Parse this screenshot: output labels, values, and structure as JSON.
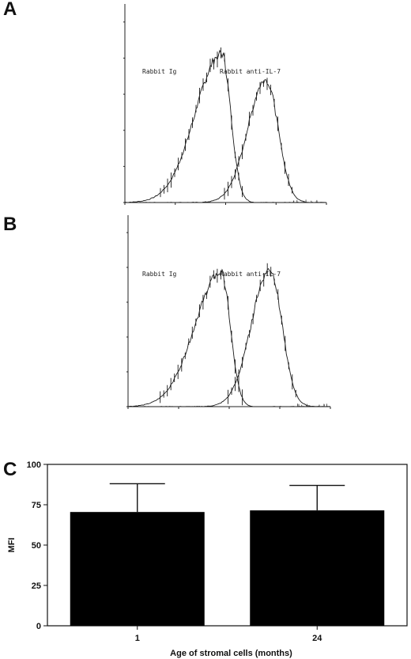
{
  "panels": {
    "A": {
      "letter": "A",
      "label_left": "Rabbit Ig",
      "label_right": "Rabbit anti-IL-7"
    },
    "B": {
      "letter": "B",
      "label_left": "Rabbit Ig",
      "label_right": "Rabbit anti-IL-7"
    },
    "C": {
      "letter": "C"
    }
  },
  "chart_data": [
    {
      "panel": "A",
      "type": "line",
      "title": "",
      "xlabel": "",
      "ylabel": "",
      "xscale": "log",
      "series": [
        {
          "name": "Rabbit Ig",
          "peak_center": 0.48,
          "peak_height": 0.75
        },
        {
          "name": "Rabbit anti-IL-7",
          "peak_center": 0.7,
          "peak_height": 0.62
        }
      ]
    },
    {
      "panel": "B",
      "type": "line",
      "title": "",
      "xlabel": "",
      "ylabel": "",
      "xscale": "log",
      "series": [
        {
          "name": "Rabbit Ig",
          "peak_center": 0.46,
          "peak_height": 0.7
        },
        {
          "name": "Rabbit anti-IL-7",
          "peak_center": 0.7,
          "peak_height": 0.72
        }
      ]
    },
    {
      "panel": "C",
      "type": "bar",
      "title": "",
      "categories": [
        "1",
        "24"
      ],
      "values": [
        70.5,
        71.5
      ],
      "error_bars": [
        17.5,
        15.5
      ],
      "xlabel": "Age of stromal cells (months)",
      "ylabel": "MFI",
      "ylim": [
        0,
        100
      ],
      "yticks": [
        "0",
        "25",
        "50",
        "75",
        "100"
      ],
      "grid": false,
      "bar_color": "#000000"
    }
  ]
}
